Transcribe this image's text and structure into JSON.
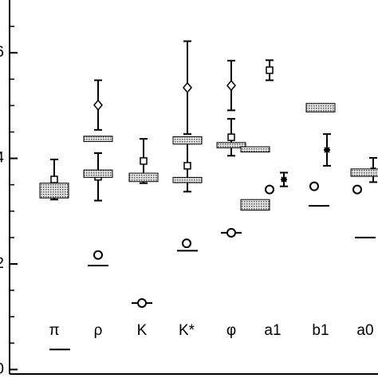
{
  "chart_data": {
    "type": "mixed",
    "categories": [
      "π",
      "ρ",
      "K",
      "K*",
      "φ",
      "a1",
      "b1",
      "a0"
    ],
    "ylim": [
      -0.1,
      7.0
    ],
    "yticks": [
      0,
      2,
      4,
      6
    ],
    "yminorticks": [
      0.5,
      1,
      1.5,
      2.5,
      3,
      3.5,
      4.5,
      5,
      5.5,
      6.5
    ],
    "series": [
      {
        "marker": "line",
        "color": "#000",
        "values": [
          0.38,
          1.97,
          1.26,
          2.25,
          2.59,
          null,
          3.1,
          2.5
        ]
      },
      {
        "marker": "circle",
        "color": "#000",
        "values": [
          null,
          2.17,
          1.26,
          2.39,
          2.59,
          3.41,
          3.47,
          3.41
        ]
      },
      {
        "marker": "square",
        "color": "#000",
        "values": [
          3.6,
          3.65,
          3.95,
          3.86,
          4.4,
          5.67,
          null,
          null
        ],
        "errors": [
          0.38,
          0.45,
          0.42,
          0.49,
          0.35,
          0.19,
          null,
          null
        ]
      },
      {
        "marker": "diamond",
        "color": "#000",
        "values": [
          null,
          5.01,
          null,
          5.34,
          5.38,
          null,
          null,
          null
        ],
        "errors": [
          null,
          0.47,
          null,
          0.88,
          0.47,
          null,
          null,
          null
        ]
      },
      {
        "marker": "star",
        "color": "#000",
        "values": [
          null,
          null,
          null,
          null,
          null,
          3.6,
          4.16,
          3.78
        ],
        "errors": [
          null,
          null,
          null,
          null,
          null,
          0.13,
          0.3,
          0.23
        ]
      },
      {
        "marker": "box",
        "color": "#999",
        "values": [
          3.39,
          4.37,
          3.64,
          4.34,
          4.25,
          4.17,
          4.96,
          3.73
        ],
        "errors": [
          0.14,
          0.05,
          0.08,
          0.07,
          0.05,
          0.05,
          0.08,
          0.07
        ]
      },
      {
        "marker": "box",
        "color": "#999",
        "values": [
          null,
          3.71,
          null,
          3.59,
          null,
          3.12,
          null,
          null
        ],
        "errors": [
          null,
          0.07,
          null,
          0.05,
          null,
          0.1,
          null,
          null
        ]
      }
    ]
  }
}
